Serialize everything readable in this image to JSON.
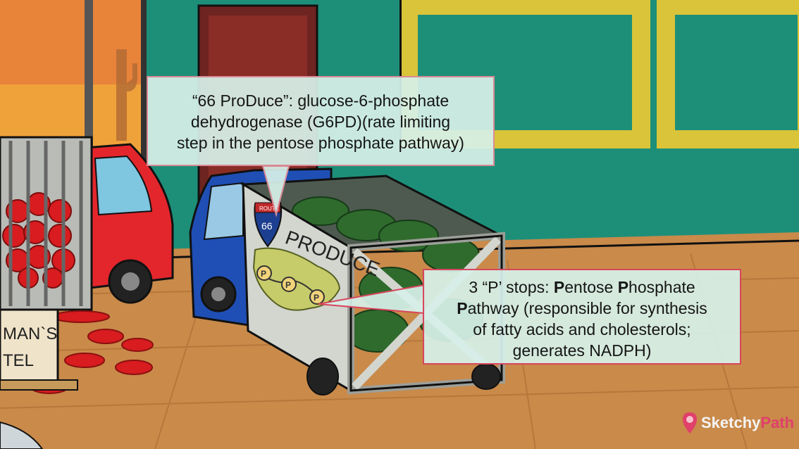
{
  "scene": {
    "colors": {
      "wall": "#1d8f79",
      "floor": "#c98a4a",
      "window_trim": "#e2c23a",
      "red_truck": "#e3262c",
      "blue_truck": "#1f4fb5",
      "crate": "#c9cbc6",
      "watermelon": "#2f6b2d",
      "tomato": "#d81c1f",
      "sky": "#f0a23a"
    },
    "shield": {
      "route": "ROUTE",
      "number": "66"
    },
    "truck_sign": "PRODUCE",
    "map_stops": [
      "P",
      "P",
      "P"
    ],
    "motel_sign": {
      "line1": "MAN`S",
      "line2": "TEL"
    }
  },
  "callouts": {
    "top": {
      "lines": [
        "“66 ProDuce”: glucose-6-phosphate",
        "dehydrogenase (G6PD)(rate limiting",
        "step in the pentose phosphate pathway)"
      ]
    },
    "bottom": {
      "line1": {
        "a": "3 “P’ stops: ",
        "b1": "P",
        "c": "entose ",
        "b2": "P",
        "d": "hosphate"
      },
      "line2": {
        "b": "P",
        "c": "athway (responsible for synthesis"
      },
      "line3": "of fatty acids and cholesterols;",
      "line4": "generates NADPH)"
    }
  },
  "logo": {
    "part1": "Sketchy",
    "part2": "Path",
    "icon": "brain-pin-icon"
  }
}
